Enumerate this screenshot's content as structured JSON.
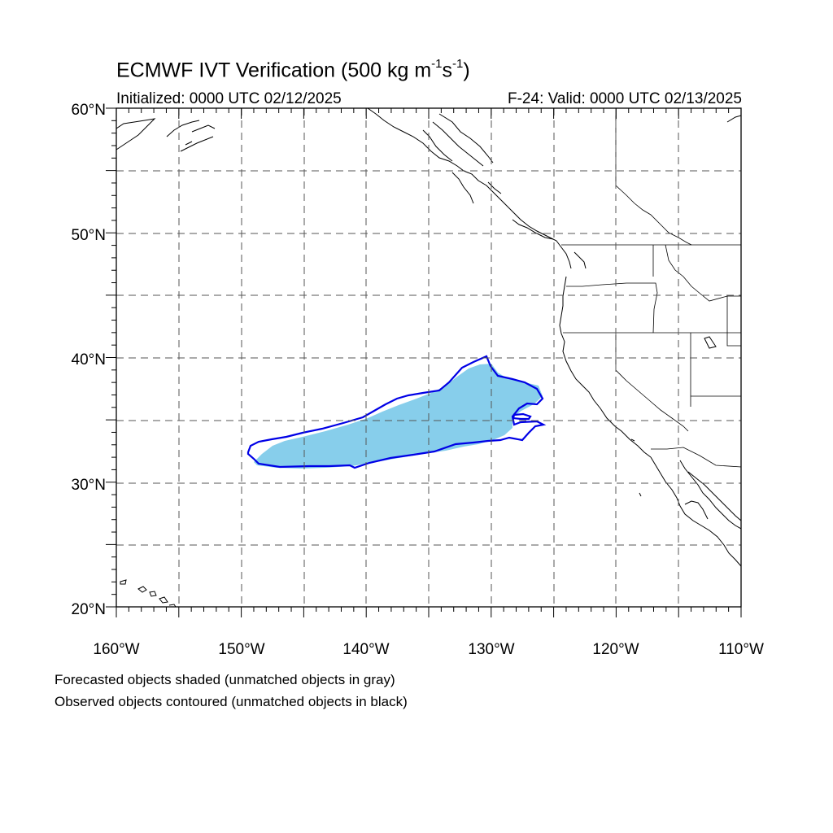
{
  "title": {
    "main": "ECMWF IVT Verification (500 kg m",
    "exp1": "-1",
    "mid": "s",
    "exp2": "-1",
    "close": ")"
  },
  "initialized": "Initialized: 0000 UTC 02/12/2025",
  "valid": "F-24: Valid: 0000 UTC 02/13/2025",
  "lat_labels": [
    "60°N",
    "50°N",
    "40°N",
    "30°N",
    "20°N"
  ],
  "lon_labels": [
    "160°W",
    "150°W",
    "140°W",
    "130°W",
    "120°W",
    "110°W"
  ],
  "map_extent": {
    "lon_min": -160,
    "lon_max": -110,
    "lat_min": 20,
    "lat_max": 60
  },
  "legend": {
    "forecast_note": "Forecasted objects shaded (unmatched objects in gray)",
    "observed_note": "Observed objects contoured (unmatched objects in black)"
  },
  "colors": {
    "forecast_fill": "#87ceeb",
    "observed_contour": "#0000e6",
    "coastline": "#000000",
    "gridline": "#555555"
  }
}
